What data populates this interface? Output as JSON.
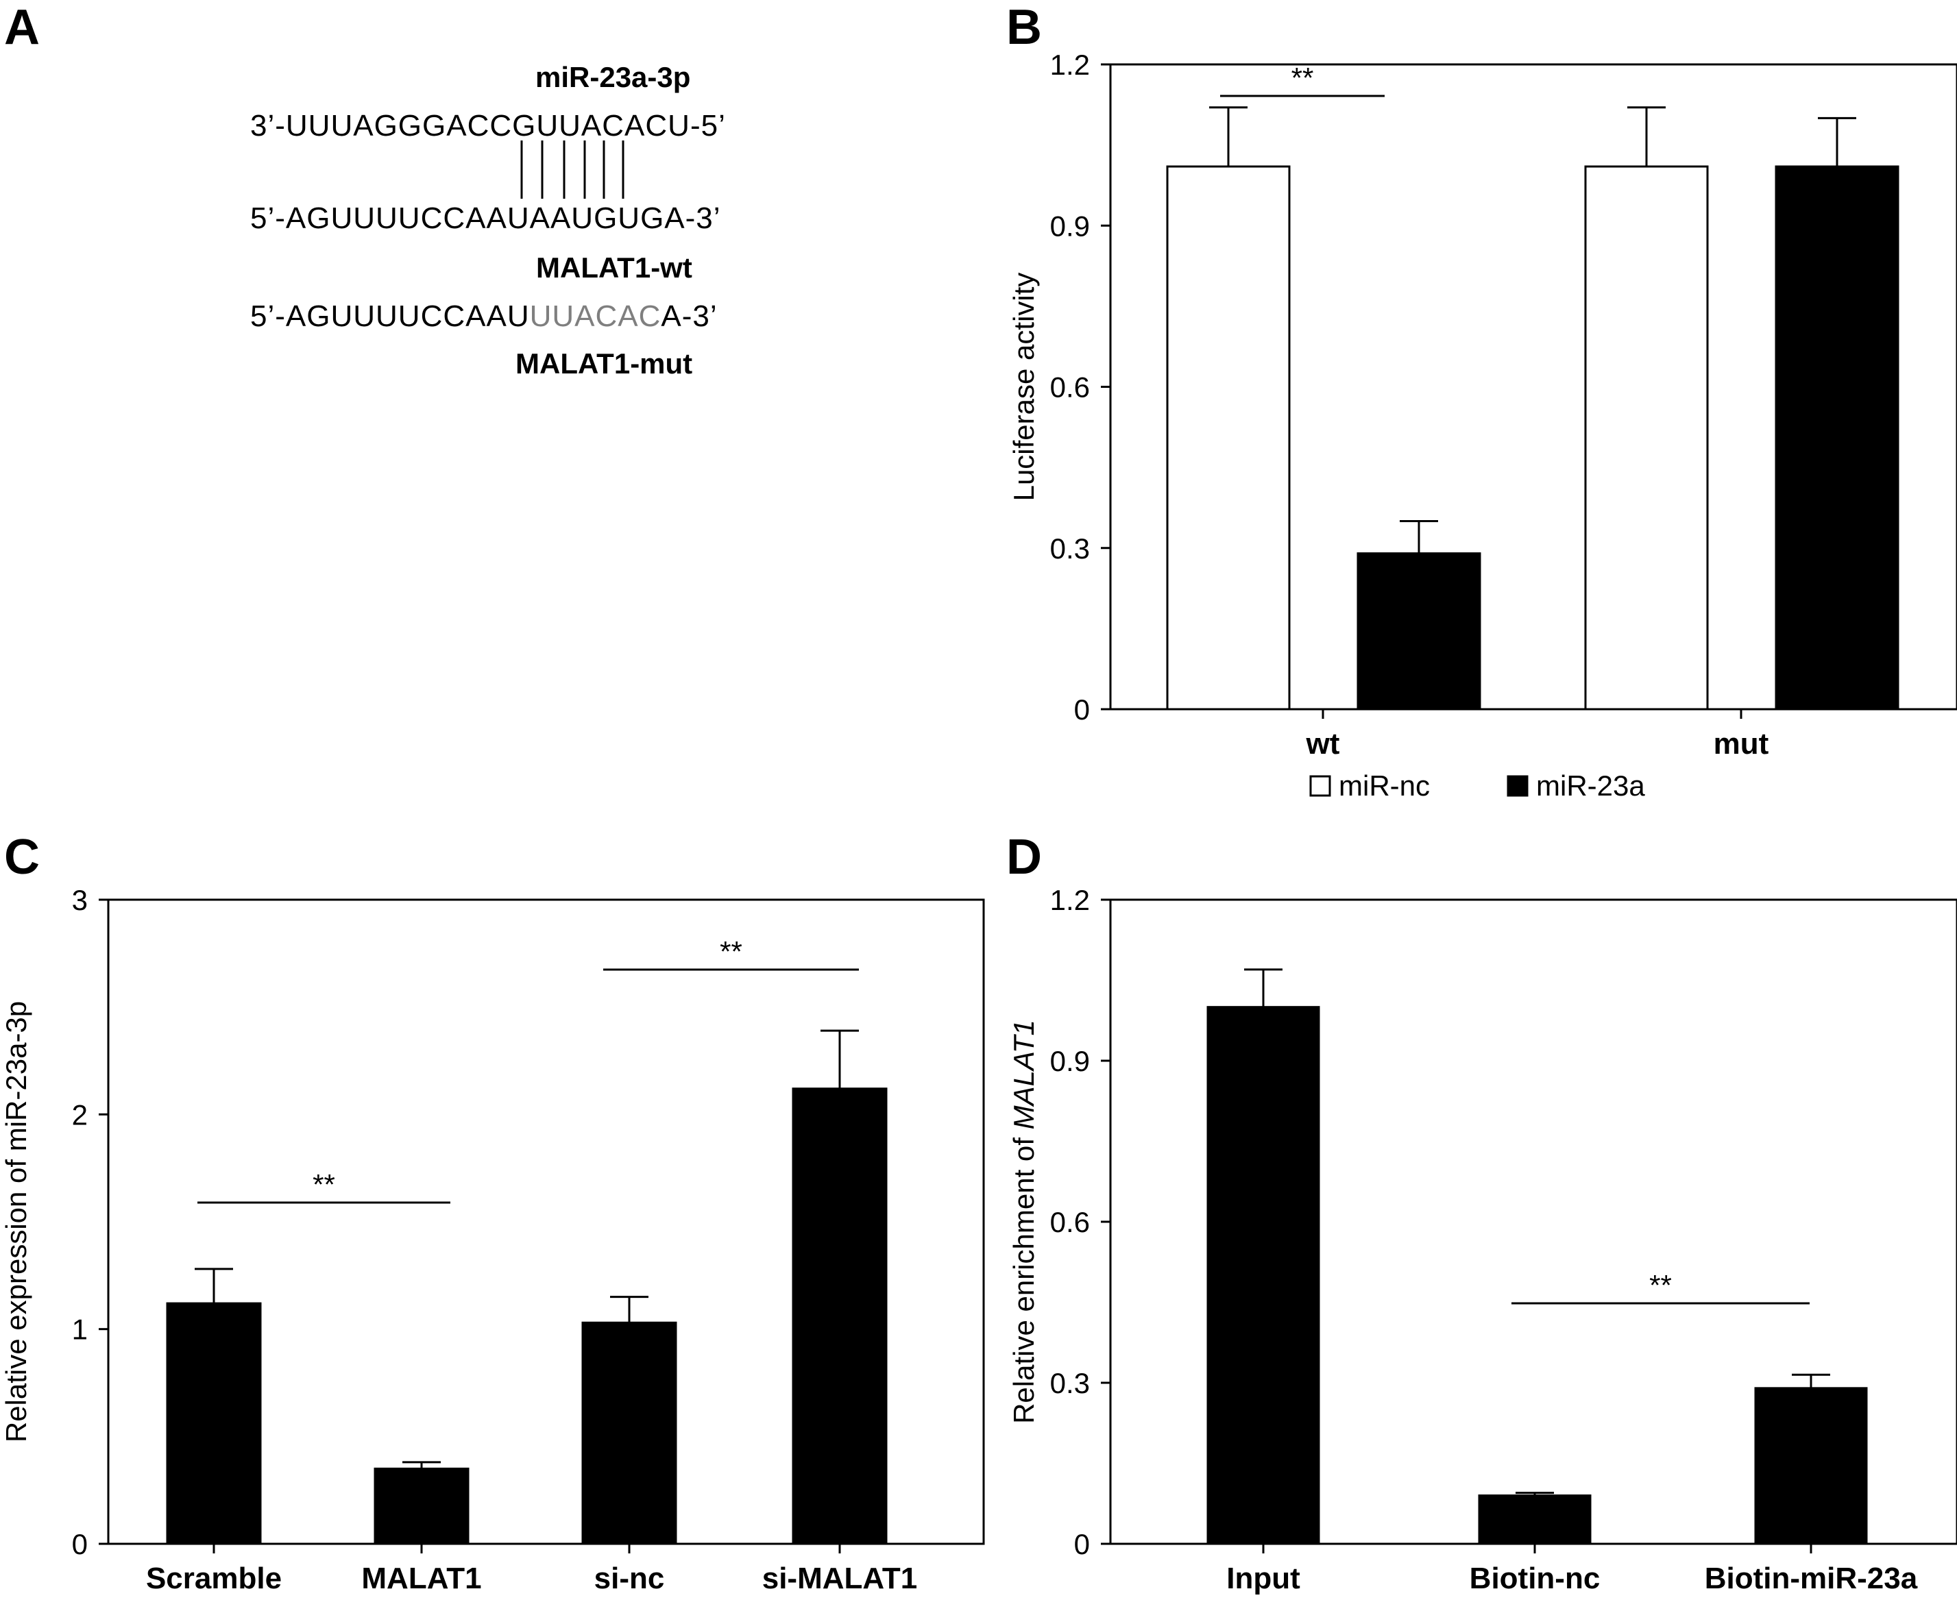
{
  "panels": {
    "A": {
      "letter": "A",
      "mirna_label": "miR-23a-3p",
      "mirna_seq": "3’-UUUAGGGACCGUUACACU-5’",
      "wt_seq": "5’-AGUUUUCCAAUAAUGUGA-3’",
      "wt_label": "MALAT1-wt",
      "mut_seq_prefix": "5’-AGUUUUCCAAU",
      "mut_seq_mutated": "UUACAC",
      "mut_seq_suffix": "A-3’",
      "mut_label": "MALAT1-mut",
      "mutation_color": "#7f7f7f"
    },
    "B": {
      "letter": "B"
    },
    "C": {
      "letter": "C"
    },
    "D": {
      "letter": "D"
    }
  },
  "chart_data": [
    {
      "panel": "B",
      "type": "bar",
      "ylabel": "Luciferase activity",
      "ylim": [
        0,
        1.2
      ],
      "yticks": [
        "0",
        "0.3",
        "0.6",
        "0.9",
        "1.2"
      ],
      "categories": [
        "wt",
        "mut"
      ],
      "series": [
        {
          "name": "miR-nc",
          "color": "#ffffff",
          "values": [
            1.01,
            1.01
          ],
          "errors": [
            0.11,
            0.11
          ]
        },
        {
          "name": "miR-23a",
          "color": "#000000",
          "values": [
            0.29,
            1.01
          ],
          "errors": [
            0.06,
            0.09
          ]
        }
      ],
      "significance": [
        {
          "label": "**",
          "category": "wt"
        }
      ],
      "legend_position": "bottom"
    },
    {
      "panel": "C",
      "type": "bar",
      "ylabel": "Relative expression of miR-23a-3p",
      "ylim": [
        0,
        3
      ],
      "yticks": [
        "0",
        "1",
        "2",
        "3"
      ],
      "categories": [
        "Scramble",
        "MALAT1",
        "si-nc",
        "si-MALAT1"
      ],
      "values": [
        1.12,
        0.35,
        1.03,
        2.12
      ],
      "errors": [
        0.16,
        0.03,
        0.12,
        0.27
      ],
      "color": "#000000",
      "significance": [
        {
          "label": "**",
          "from": "Scramble",
          "to": "MALAT1"
        },
        {
          "label": "**",
          "from": "si-nc",
          "to": "si-MALAT1"
        }
      ]
    },
    {
      "panel": "D",
      "type": "bar",
      "ylabel_prefix": "Relative enrichment of ",
      "ylabel_italic": "MALAT1",
      "ylim": [
        0,
        1.2
      ],
      "yticks": [
        "0",
        "0.3",
        "0.6",
        "0.9",
        "1.2"
      ],
      "categories": [
        "Input",
        "Biotin-nc",
        "Biotin-miR-23a"
      ],
      "values": [
        1.0,
        0.09,
        0.29
      ],
      "errors": [
        0.07,
        0.005,
        0.025
      ],
      "color": "#000000",
      "significance": [
        {
          "label": "**",
          "from": "Biotin-nc",
          "to": "Biotin-miR-23a"
        }
      ]
    }
  ]
}
